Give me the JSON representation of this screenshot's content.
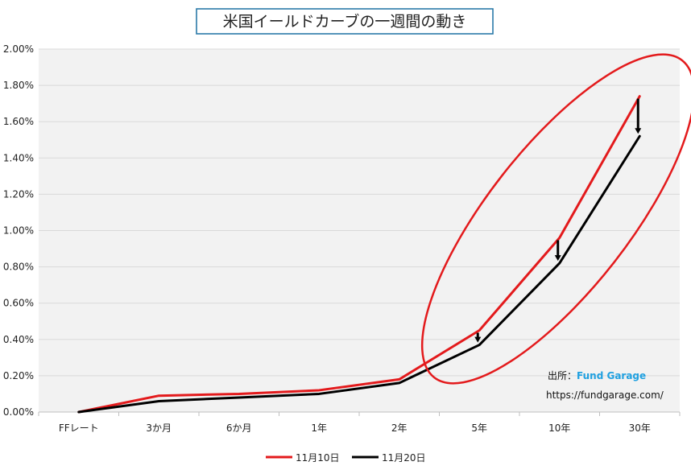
{
  "chart_data": {
    "type": "line",
    "title": "米国イールドカーブの一週間の動き",
    "xlabel": "",
    "ylabel": "",
    "categories": [
      "FFレート",
      "3か月",
      "6か月",
      "1年",
      "2年",
      "5年",
      "10年",
      "30年"
    ],
    "ylim": [
      0,
      2.0
    ],
    "yticks": [
      "0.00%",
      "0.20%",
      "0.40%",
      "0.60%",
      "0.80%",
      "1.00%",
      "1.20%",
      "1.40%",
      "1.60%",
      "1.80%",
      "2.00%"
    ],
    "grid": true,
    "legend_position": "bottom",
    "series": [
      {
        "name": "11月10日",
        "color": "#e31a1c",
        "values": [
          0.0,
          0.09,
          0.1,
          0.12,
          0.18,
          0.45,
          0.96,
          1.74
        ]
      },
      {
        "name": "11月20日",
        "color": "#000000",
        "values": [
          0.0,
          0.06,
          0.08,
          0.1,
          0.16,
          0.37,
          0.82,
          1.52
        ]
      }
    ],
    "annotations": {
      "source_label": "出所：",
      "source_brand": "Fund Garage",
      "source_url": "https://fundgarage.com/",
      "brand_color": "#1fa0e0",
      "highlight_color": "#e31a1c",
      "arrow_categories": [
        "5年",
        "10年",
        "30年"
      ]
    }
  }
}
